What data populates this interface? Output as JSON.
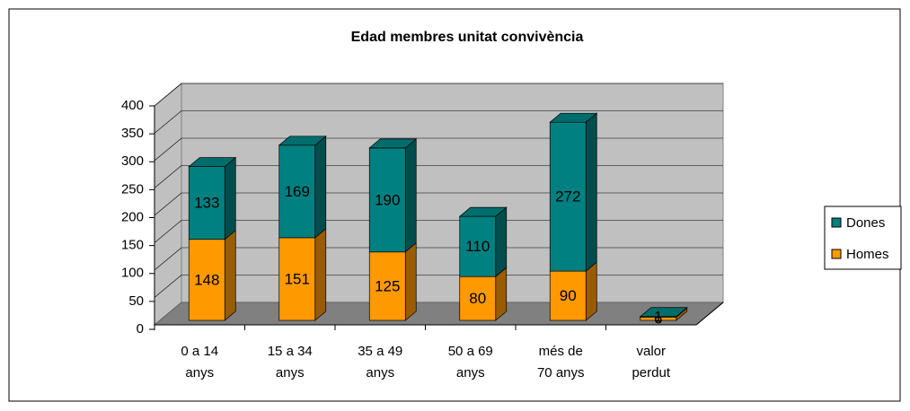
{
  "chart_data": {
    "type": "bar",
    "stacked": true,
    "title": "Edad membres unitat convivència",
    "categories": [
      "0 a 14 anys",
      "15 a 34 anys",
      "35 a 49 anys",
      "50 a 69 anys",
      "més de 70 anys",
      "valor perdut"
    ],
    "series": [
      {
        "name": "Homes",
        "color": "#ff9900",
        "values": [
          148,
          151,
          125,
          80,
          90,
          6
        ]
      },
      {
        "name": "Dones",
        "color": "#008080",
        "values": [
          133,
          169,
          190,
          110,
          272,
          1
        ]
      }
    ],
    "ylim": [
      0,
      400
    ],
    "yticks": [
      0,
      50,
      100,
      150,
      200,
      250,
      300,
      350,
      400
    ],
    "grid": true,
    "legend": "right"
  }
}
